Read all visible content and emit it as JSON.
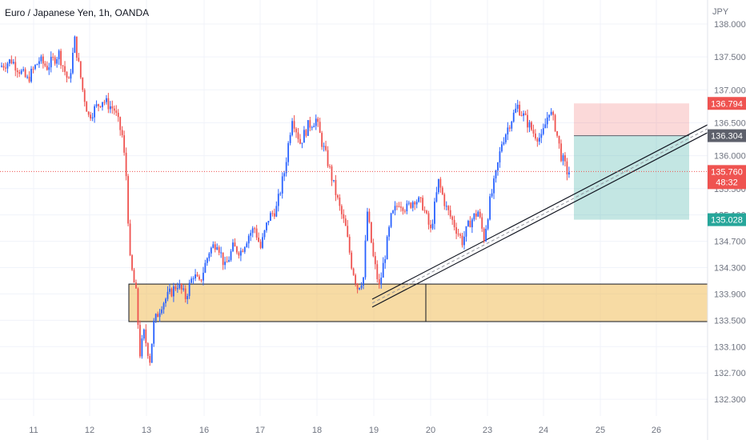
{
  "header": {
    "title": "Euro / Japanese Yen, 1h, OANDA"
  },
  "chart_data": {
    "type": "candlestick",
    "title": "Euro / Japanese Yen, 1h, OANDA",
    "y_axis_currency": "JPY",
    "ylim": [
      132.0,
      138.3
    ],
    "y_ticks": [
      "138.000",
      "137.500",
      "137.000",
      "136.500",
      "136.000",
      "135.500",
      "135.100",
      "134.700",
      "134.300",
      "133.900",
      "133.500",
      "133.100",
      "132.700",
      "132.300"
    ],
    "x_ticks": [
      "11",
      "12",
      "13",
      "16",
      "17",
      "18",
      "19",
      "20",
      "23",
      "24",
      "25",
      "26"
    ],
    "price_badges": [
      {
        "value": "136.794",
        "color": "#ef5350"
      },
      {
        "value": "136.304",
        "color": "#5d606b"
      },
      {
        "value": "135.760",
        "sub": "48:32",
        "color": "#ef5350"
      },
      {
        "value": "135.028",
        "color": "#26a69a"
      }
    ],
    "current_price": 135.76,
    "support_zone": {
      "top": 134.05,
      "bottom": 133.48
    },
    "trend_channel": {
      "start_price": 133.7,
      "end_price": 136.35,
      "width": 0.12
    },
    "position": {
      "entry": 136.304,
      "stop": 136.794,
      "target": 135.028
    },
    "waypoints": [
      [
        0,
        137.35
      ],
      [
        6,
        137.45
      ],
      [
        10,
        137.3
      ],
      [
        14,
        137.15
      ],
      [
        20,
        137.45
      ],
      [
        24,
        137.35
      ],
      [
        30,
        137.55
      ],
      [
        35,
        137.1
      ],
      [
        38,
        137.75
      ],
      [
        42,
        137.0
      ],
      [
        45,
        136.6
      ],
      [
        52,
        136.85
      ],
      [
        58,
        136.7
      ],
      [
        62,
        136.3
      ],
      [
        64,
        135.7
      ],
      [
        66,
        134.4
      ],
      [
        69,
        133.9
      ],
      [
        71,
        133.0
      ],
      [
        73,
        133.3
      ],
      [
        76,
        132.9
      ],
      [
        78,
        133.45
      ],
      [
        82,
        133.75
      ],
      [
        86,
        133.9
      ],
      [
        90,
        134.05
      ],
      [
        94,
        133.85
      ],
      [
        98,
        134.2
      ],
      [
        101,
        134.05
      ],
      [
        106,
        134.55
      ],
      [
        110,
        134.7
      ],
      [
        114,
        134.3
      ],
      [
        118,
        134.6
      ],
      [
        122,
        134.55
      ],
      [
        126,
        134.8
      ],
      [
        129,
        134.9
      ],
      [
        132,
        134.6
      ],
      [
        136,
        135.05
      ],
      [
        140,
        135.2
      ],
      [
        144,
        135.75
      ],
      [
        148,
        136.6
      ],
      [
        152,
        136.2
      ],
      [
        156,
        136.45
      ],
      [
        160,
        136.55
      ],
      [
        163,
        136.2
      ],
      [
        166,
        135.9
      ],
      [
        169,
        135.55
      ],
      [
        172,
        135.2
      ],
      [
        175,
        134.9
      ],
      [
        178,
        134.35
      ],
      [
        181,
        134.0
      ],
      [
        184,
        134.15
      ],
      [
        186,
        135.15
      ],
      [
        189,
        134.45
      ],
      [
        192,
        134.0
      ],
      [
        195,
        134.5
      ],
      [
        198,
        135.05
      ],
      [
        202,
        135.3
      ],
      [
        206,
        135.2
      ],
      [
        210,
        135.35
      ],
      [
        214,
        135.25
      ],
      [
        218,
        134.85
      ],
      [
        222,
        135.6
      ],
      [
        226,
        135.2
      ],
      [
        230,
        134.95
      ],
      [
        234,
        134.7
      ],
      [
        238,
        135.0
      ],
      [
        242,
        135.15
      ],
      [
        245,
        134.75
      ],
      [
        248,
        135.3
      ],
      [
        251,
        135.7
      ],
      [
        254,
        136.2
      ],
      [
        258,
        136.5
      ],
      [
        262,
        136.75
      ],
      [
        266,
        136.55
      ],
      [
        270,
        136.35
      ],
      [
        274,
        136.25
      ],
      [
        278,
        136.7
      ],
      [
        281,
        136.45
      ],
      [
        284,
        136.0
      ],
      [
        287,
        135.76
      ]
    ]
  }
}
